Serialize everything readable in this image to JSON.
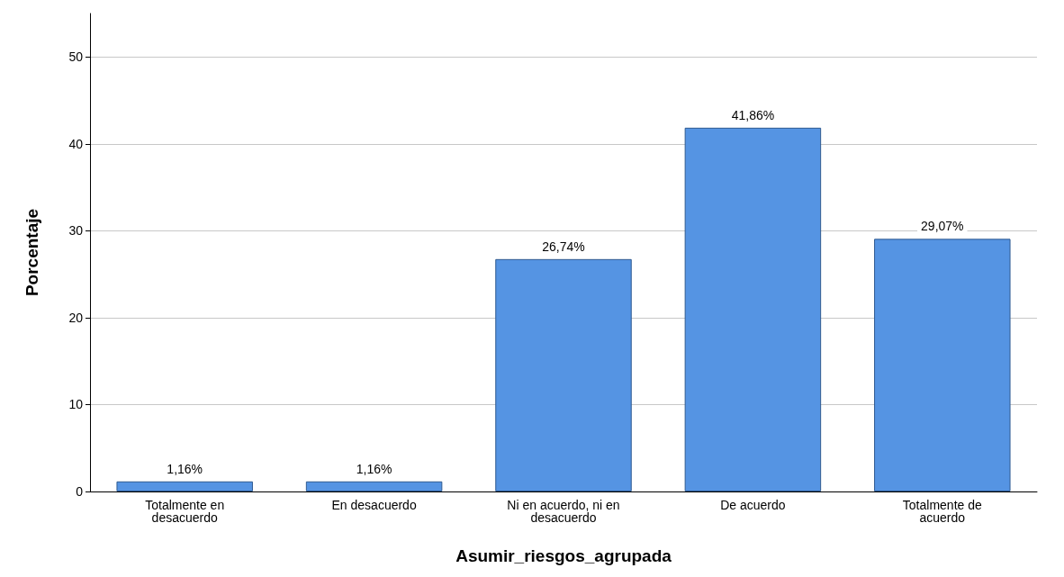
{
  "chart_data": {
    "type": "bar",
    "xlabel": "Asumir_riesgos_agrupada",
    "ylabel": "Porcentaje",
    "categories": [
      "Totalmente en\ndesacuerdo",
      "En desacuerdo",
      "Ni en acuerdo, ni en\ndesacuerdo",
      "De acuerdo",
      "Totalmente de\nacuerdo"
    ],
    "values": [
      1.16,
      1.16,
      26.74,
      41.86,
      29.07
    ],
    "value_labels": [
      "1,16%",
      "1,16%",
      "26,74%",
      "41,86%",
      "29,07%"
    ],
    "color": "#5594e3",
    "ylim": [
      0,
      55
    ],
    "yticks": [
      0,
      10,
      20,
      30,
      40,
      50
    ],
    "grid": "y"
  }
}
